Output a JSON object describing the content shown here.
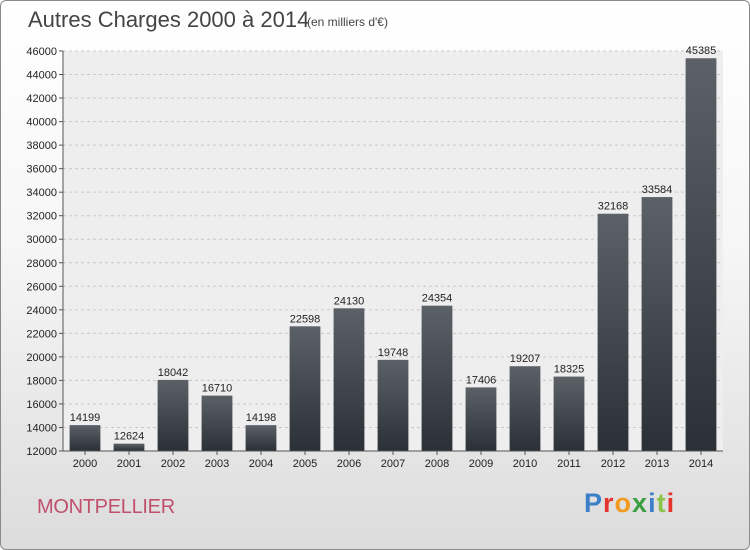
{
  "header": {
    "title": "Autres Charges 2000 à 2014",
    "subtitle": "(en milliers d'€)"
  },
  "footer": {
    "city": "MONTPELLIER",
    "logo_text": "Proxiti",
    "logo_colors": [
      "#3b7fc9",
      "#e3342f",
      "#f29a1d",
      "#3a9f3e",
      "#3b7fc9",
      "#8bc34a",
      "#e3342f"
    ]
  },
  "colors": {
    "bar_top": "#5c6168",
    "bar_bottom": "#2b3037",
    "plot_bg": "#eeeeee",
    "grid": "#c8c8c8",
    "city": "#c0506c"
  },
  "chart_data": {
    "type": "bar",
    "title": "Autres Charges 2000 à 2014",
    "subtitle": "(en milliers d'€)",
    "categories": [
      "2000",
      "2001",
      "2002",
      "2003",
      "2004",
      "2005",
      "2006",
      "2007",
      "2008",
      "2009",
      "2010",
      "2011",
      "2012",
      "2013",
      "2014"
    ],
    "values": [
      14199,
      12624,
      18042,
      16710,
      14198,
      22598,
      24130,
      19748,
      24354,
      17406,
      19207,
      18325,
      32168,
      33584,
      45385
    ],
    "ylim": [
      12000,
      46000
    ],
    "ytick_step": 2000,
    "grid": true,
    "data_labels": true
  }
}
